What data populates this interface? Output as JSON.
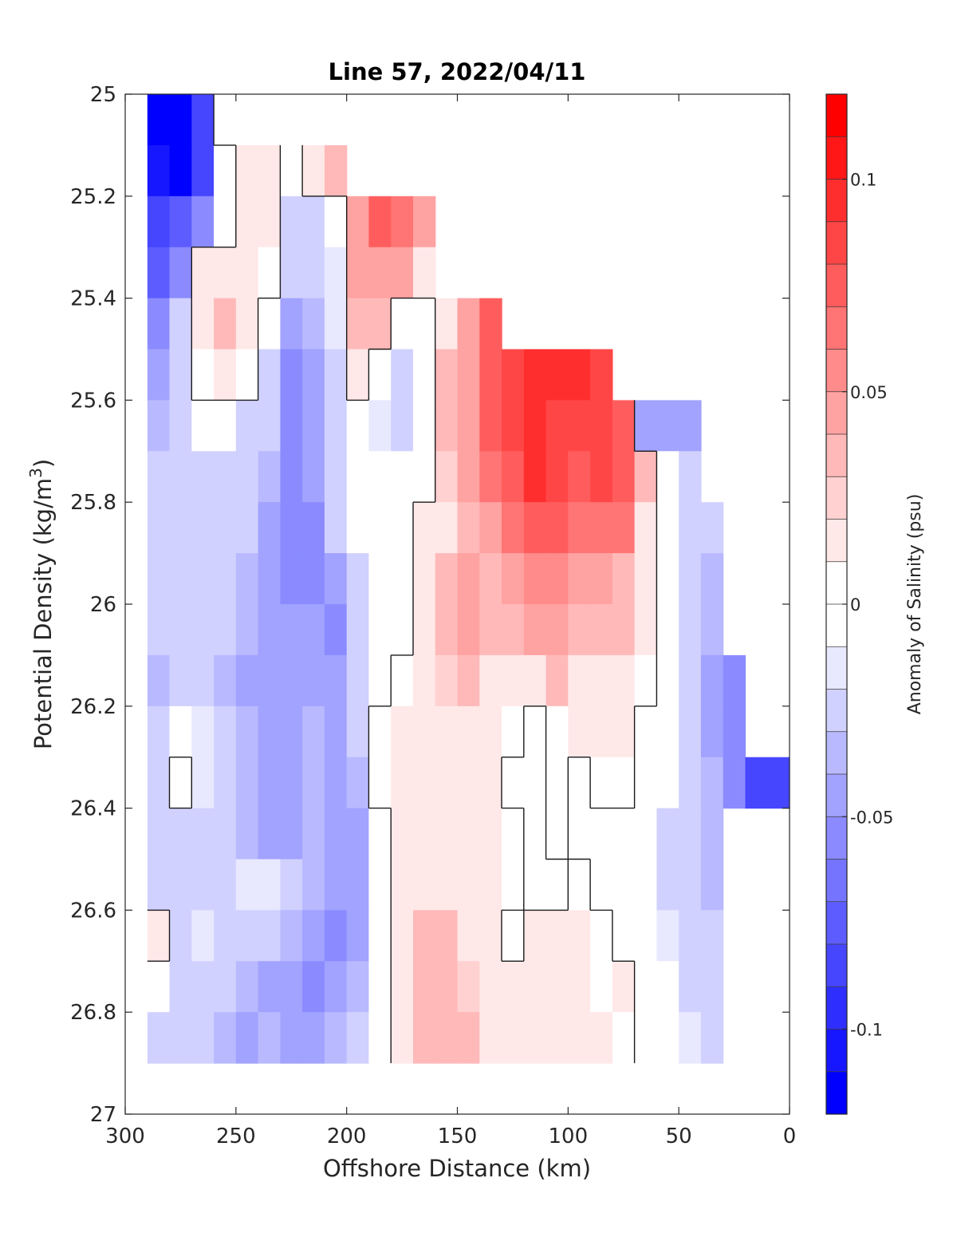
{
  "chart_data": {
    "type": "heatmap",
    "title": "Line 57, 2022/04/11",
    "xlabel": "Offshore Distance (km)",
    "ylabel_main": "Potential Density (kg/m",
    "ylabel_sup": "3",
    "ylabel_end": ")",
    "xlim": [
      300,
      0
    ],
    "ylim": [
      25,
      27
    ],
    "x_ticks": [
      "300",
      "250",
      "200",
      "150",
      "100",
      "50",
      "0"
    ],
    "x_tick_values": [
      300,
      250,
      200,
      150,
      100,
      50,
      0
    ],
    "y_ticks": [
      "25",
      "25.2",
      "25.4",
      "25.6",
      "25.8",
      "26",
      "26.2",
      "26.4",
      "26.6",
      "26.8",
      "27"
    ],
    "y_tick_values": [
      25,
      25.2,
      25.4,
      25.6,
      25.8,
      26,
      26.2,
      26.4,
      26.6,
      26.8,
      27
    ],
    "colorbar": {
      "label": "Anomaly of Salinity (psu)",
      "min": -0.12,
      "max": 0.12,
      "step": 0.01,
      "tick_labels": [
        "0.1",
        "0.05",
        "0",
        "-0.05",
        "-0.1"
      ],
      "tick_values": [
        0.1,
        0.05,
        0,
        -0.05,
        -0.1
      ],
      "neg_color": "#0000ff",
      "pos_color": "#ff0000",
      "zero_color": "#ffffff"
    },
    "x": [
      285,
      275,
      265,
      255,
      245,
      235,
      225,
      215,
      205,
      195,
      185,
      175,
      165,
      155,
      145,
      135,
      125,
      115,
      105,
      95,
      85,
      75,
      65,
      55,
      45,
      35,
      25,
      15,
      5
    ],
    "y": [
      25.05,
      25.15,
      25.25,
      25.35,
      25.45,
      25.55,
      25.65,
      25.75,
      25.85,
      25.95,
      26.05,
      26.15,
      26.25,
      26.35,
      26.45,
      26.55,
      26.65,
      26.75,
      26.85
    ],
    "density_top": [
      25.0,
      25.0,
      25.0,
      25.0,
      25.1,
      25.1,
      25.1,
      25.1,
      25.1,
      25.2,
      25.2,
      25.2,
      25.2,
      25.4,
      25.4,
      25.4,
      25.5,
      25.5,
      25.5,
      25.5,
      25.5,
      25.6,
      25.6,
      25.6,
      25.6,
      25.9,
      26.1,
      26.3,
      26.3
    ],
    "density_bottom": [
      26.9,
      26.9,
      26.9,
      26.9,
      26.9,
      26.9,
      26.9,
      26.9,
      26.9,
      26.9,
      26.9,
      26.9,
      26.9,
      26.9,
      26.9,
      26.9,
      26.9,
      26.9,
      26.9,
      26.9,
      26.9,
      26.9,
      26.9,
      26.9,
      26.9,
      26.9,
      26.4,
      26.4,
      26.4
    ],
    "values": [
      [
        -0.11,
        -0.12,
        -0.09,
        0.005,
        null,
        null,
        null,
        null,
        null,
        null,
        null,
        null,
        null,
        null,
        null,
        null,
        null,
        null,
        null,
        null,
        null,
        null,
        null,
        null,
        null,
        null,
        null,
        null,
        null
      ],
      [
        -0.1,
        -0.11,
        -0.08,
        -0.01,
        0.015,
        0.01,
        -0.005,
        0.015,
        0.03,
        null,
        null,
        null,
        null,
        null,
        null,
        null,
        null,
        null,
        null,
        null,
        null,
        null,
        null,
        null,
        null,
        null,
        null,
        null,
        null
      ],
      [
        -0.08,
        -0.07,
        -0.05,
        -0.01,
        0.02,
        0.01,
        -0.02,
        -0.03,
        -0.01,
        0.05,
        0.07,
        0.06,
        0.04,
        null,
        null,
        null,
        null,
        null,
        null,
        null,
        null,
        null,
        null,
        null,
        null,
        null,
        null,
        null,
        null
      ],
      [
        -0.07,
        -0.05,
        0.01,
        0.015,
        0.02,
        0.005,
        -0.03,
        -0.03,
        -0.015,
        0.04,
        0.05,
        0.04,
        0.02,
        null,
        null,
        null,
        null,
        null,
        null,
        null,
        null,
        null,
        null,
        null,
        null,
        null,
        null,
        null,
        null
      ],
      [
        -0.05,
        -0.03,
        0.02,
        0.03,
        0.015,
        -0.01,
        -0.04,
        -0.035,
        -0.015,
        0.03,
        0.035,
        -0.005,
        -0.01,
        0.02,
        0.05,
        0.07,
        null,
        null,
        null,
        null,
        null,
        null,
        null,
        null,
        null,
        null,
        null,
        null,
        null
      ],
      [
        -0.04,
        -0.02,
        0.005,
        0.01,
        0.005,
        -0.02,
        -0.05,
        -0.04,
        -0.02,
        0.015,
        -0.01,
        -0.02,
        -0.01,
        0.03,
        0.05,
        0.07,
        0.08,
        0.09,
        0.09,
        0.09,
        0.08,
        null,
        null,
        null,
        null,
        null,
        null,
        null,
        null
      ],
      [
        -0.035,
        -0.025,
        -0.01,
        -0.005,
        -0.02,
        -0.03,
        -0.055,
        -0.045,
        -0.02,
        0.0,
        -0.015,
        -0.02,
        0.0,
        0.03,
        0.05,
        0.07,
        0.085,
        0.09,
        0.085,
        0.08,
        0.085,
        0.07,
        -0.04,
        -0.04,
        -0.04,
        null,
        null,
        null,
        null
      ],
      [
        -0.03,
        -0.025,
        -0.02,
        -0.02,
        -0.025,
        -0.035,
        -0.05,
        -0.045,
        -0.025,
        -0.01,
        -0.01,
        -0.01,
        0.0,
        0.025,
        0.04,
        0.06,
        0.075,
        0.09,
        0.08,
        0.075,
        0.085,
        0.07,
        0.03,
        -0.01,
        -0.03,
        null,
        null,
        null,
        null
      ],
      [
        -0.025,
        -0.02,
        -0.025,
        -0.025,
        -0.03,
        -0.04,
        -0.05,
        -0.055,
        -0.03,
        -0.01,
        0.0,
        -0.005,
        0.01,
        0.02,
        0.03,
        0.05,
        0.06,
        0.07,
        0.07,
        0.065,
        0.06,
        0.06,
        0.02,
        0.0,
        -0.03,
        -0.03,
        null,
        null,
        null
      ],
      [
        -0.025,
        -0.02,
        -0.025,
        -0.03,
        -0.035,
        -0.045,
        -0.05,
        -0.05,
        -0.045,
        -0.02,
        -0.005,
        -0.01,
        0.015,
        0.03,
        0.04,
        0.03,
        0.04,
        0.055,
        0.055,
        0.045,
        0.04,
        0.035,
        0.02,
        0.0,
        -0.025,
        -0.035,
        null,
        null,
        null
      ],
      [
        -0.03,
        -0.025,
        -0.02,
        -0.03,
        -0.035,
        -0.04,
        -0.045,
        -0.045,
        -0.05,
        -0.02,
        -0.01,
        -0.005,
        0.015,
        0.03,
        0.04,
        0.03,
        0.035,
        0.04,
        0.04,
        0.035,
        0.03,
        0.03,
        0.02,
        0.0,
        -0.025,
        -0.035,
        null,
        null,
        null
      ],
      [
        -0.035,
        -0.02,
        -0.025,
        -0.035,
        -0.04,
        -0.04,
        -0.04,
        -0.04,
        -0.045,
        -0.02,
        0.0,
        0.005,
        0.015,
        0.025,
        0.03,
        0.02,
        0.01,
        0.02,
        0.03,
        0.02,
        0.02,
        0.015,
        0.005,
        -0.005,
        -0.03,
        -0.04,
        -0.05,
        null,
        null
      ],
      [
        -0.025,
        -0.01,
        -0.015,
        -0.03,
        -0.035,
        -0.04,
        -0.045,
        -0.035,
        -0.04,
        -0.03,
        0.005,
        0.01,
        0.01,
        0.015,
        0.015,
        0.01,
        0.005,
        0.0,
        0.005,
        0.01,
        0.015,
        0.01,
        0.0,
        -0.01,
        -0.03,
        -0.04,
        -0.06,
        null,
        null
      ],
      [
        -0.02,
        0.005,
        -0.015,
        -0.03,
        -0.035,
        -0.045,
        -0.04,
        -0.035,
        -0.045,
        -0.035,
        0.005,
        0.01,
        0.01,
        0.015,
        0.01,
        0.01,
        -0.005,
        0.0,
        0.005,
        0.0,
        0.005,
        0.005,
        -0.005,
        -0.01,
        -0.025,
        -0.035,
        -0.06,
        -0.08,
        -0.09
      ],
      [
        -0.03,
        -0.025,
        -0.025,
        -0.03,
        -0.035,
        -0.04,
        -0.04,
        -0.035,
        -0.04,
        -0.04,
        -0.005,
        0.01,
        0.015,
        0.015,
        0.01,
        0.01,
        0.005,
        0.0,
        0.005,
        0.0,
        0.0,
        -0.005,
        -0.01,
        -0.02,
        -0.025,
        -0.035,
        null,
        null,
        null
      ],
      [
        -0.03,
        -0.02,
        -0.02,
        -0.02,
        -0.015,
        -0.015,
        -0.03,
        -0.035,
        -0.04,
        -0.045,
        -0.01,
        0.015,
        0.02,
        0.02,
        0.015,
        0.01,
        0.005,
        0.0,
        0.0,
        0.005,
        0.0,
        -0.005,
        -0.005,
        -0.02,
        -0.025,
        -0.035,
        null,
        null,
        null
      ],
      [
        0.01,
        -0.02,
        -0.015,
        -0.025,
        -0.02,
        -0.025,
        -0.035,
        -0.045,
        -0.05,
        -0.045,
        -0.01,
        0.02,
        0.03,
        0.03,
        0.02,
        0.01,
        0.0,
        0.015,
        0.015,
        0.01,
        0.005,
        0.0,
        -0.005,
        -0.015,
        -0.025,
        -0.03,
        null,
        null,
        null
      ],
      [
        -0.01,
        -0.025,
        -0.03,
        -0.03,
        -0.035,
        -0.04,
        -0.045,
        -0.055,
        -0.045,
        -0.035,
        -0.005,
        0.02,
        0.03,
        0.035,
        0.025,
        0.015,
        0.02,
        0.02,
        0.02,
        0.01,
        0.005,
        0.01,
        0.0,
        -0.01,
        -0.02,
        -0.02,
        null,
        null,
        null
      ],
      [
        -0.025,
        -0.025,
        -0.03,
        -0.035,
        -0.04,
        -0.035,
        -0.04,
        -0.04,
        -0.035,
        -0.03,
        -0.005,
        0.01,
        0.03,
        0.035,
        0.03,
        0.02,
        0.015,
        0.02,
        0.015,
        0.015,
        0.01,
        0.005,
        -0.005,
        -0.005,
        -0.015,
        -0.02,
        null,
        null,
        null
      ]
    ]
  }
}
